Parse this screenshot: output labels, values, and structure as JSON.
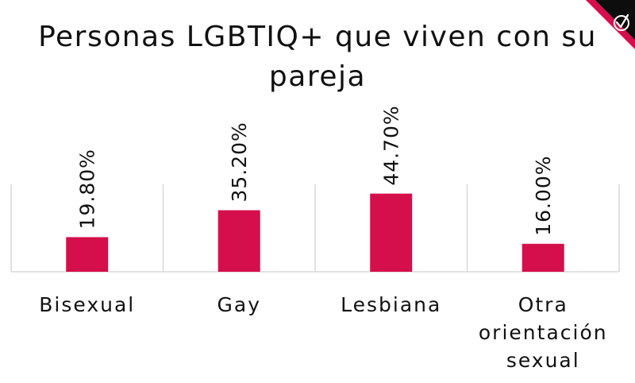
{
  "chart_data": {
    "type": "bar",
    "title": "Personas LGBTIQ+ que viven con su pareja",
    "categories": [
      "Bisexual",
      "Gay",
      "Lesbiana",
      "Otra orientación sexual"
    ],
    "values": [
      19.8,
      35.2,
      44.7,
      16.0
    ],
    "value_labels": [
      "19.80%",
      "35.20%",
      "44.70%",
      "16.00%"
    ],
    "xlabel": "",
    "ylabel": "",
    "ylim": [
      0,
      50
    ],
    "grid": false,
    "bar_color": "#d40f4b",
    "separator_color": "#d9d9d9"
  },
  "logo": {
    "background": "#0d0d0d",
    "accent": "#d40f4b",
    "icon": "checkmark-circle-icon"
  }
}
